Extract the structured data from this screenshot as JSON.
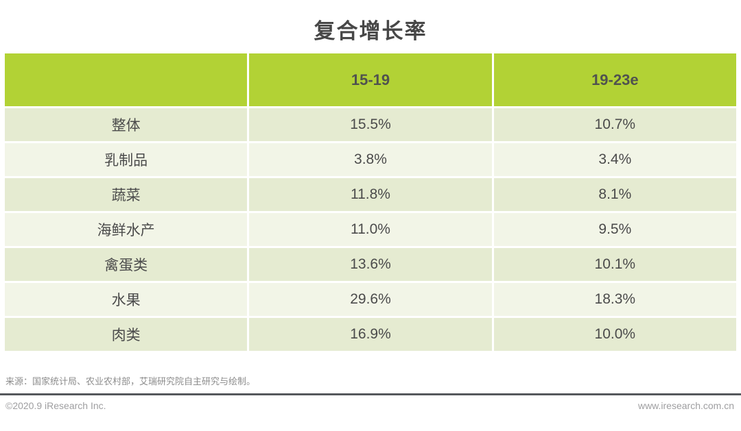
{
  "title": "复合增长率",
  "colors": {
    "header_green": "#b2d235",
    "row_odd": "#e5ebd1",
    "row_even": "#f2f5e7",
    "divider_dark": "#55585c",
    "text_dark": "#4b4b4b",
    "text_gray": "#8c8c8c"
  },
  "table": {
    "header": {
      "col0": "",
      "col1": "15-19",
      "col2": "19-23e"
    },
    "rows": [
      {
        "label": "整体",
        "v15_19": "15.5%",
        "v19_23e": "10.7%"
      },
      {
        "label": "乳制品",
        "v15_19": "3.8%",
        "v19_23e": "3.4%"
      },
      {
        "label": "蔬菜",
        "v15_19": "11.8%",
        "v19_23e": "8.1%"
      },
      {
        "label": "海鲜水产",
        "v15_19": "11.0%",
        "v19_23e": "9.5%"
      },
      {
        "label": "禽蛋类",
        "v15_19": "13.6%",
        "v19_23e": "10.1%"
      },
      {
        "label": "水果",
        "v15_19": "29.6%",
        "v19_23e": "18.3%"
      },
      {
        "label": "肉类",
        "v15_19": "16.9%",
        "v19_23e": "10.0%"
      }
    ]
  },
  "chart_data": {
    "type": "table",
    "title": "复合增长率",
    "categories": [
      "整体",
      "乳制品",
      "蔬菜",
      "海鲜水产",
      "禽蛋类",
      "水果",
      "肉类"
    ],
    "series": [
      {
        "name": "15-19",
        "unit": "%",
        "values": [
          15.5,
          3.8,
          11.8,
          11.0,
          13.6,
          29.6,
          16.9
        ]
      },
      {
        "name": "19-23e",
        "unit": "%",
        "values": [
          10.7,
          3.4,
          8.1,
          9.5,
          10.1,
          18.3,
          10.0
        ]
      }
    ]
  },
  "footer": {
    "source": "来源：国家统计局、农业农村部，艾瑞研究院自主研究与绘制。",
    "copyright": "©2020.9 iResearch Inc.",
    "website": "www.iresearch.com.cn"
  }
}
